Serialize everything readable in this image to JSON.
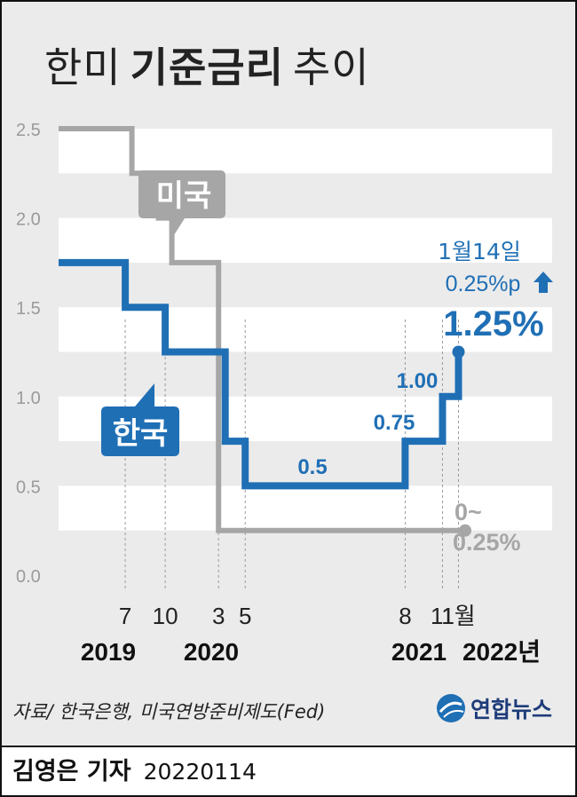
{
  "title": {
    "light_prefix": "한미",
    "bold": "기준금리",
    "light_suffix": "추이"
  },
  "chart_data": {
    "type": "line",
    "step": true,
    "title": "한미 기준금리 추이",
    "ylim": [
      0,
      2.5
    ],
    "yticks": [
      "0.0",
      "0.5",
      "1.0",
      "1.5",
      "2.0",
      "2.5"
    ],
    "x_month_labels": [
      "7",
      "10",
      "3",
      "5",
      "8",
      "11",
      "1월"
    ],
    "x_year_labels": [
      "2019",
      "2020",
      "2021",
      "2022년"
    ],
    "series": [
      {
        "name": "미국",
        "color": "#a6a6a6",
        "points": [
          {
            "t": 2019.0,
            "v": 2.5
          },
          {
            "t": 2019.55,
            "v": 2.5
          },
          {
            "t": 2019.55,
            "v": 2.25
          },
          {
            "t": 2019.75,
            "v": 2.25
          },
          {
            "t": 2019.75,
            "v": 2.0
          },
          {
            "t": 2019.85,
            "v": 2.0
          },
          {
            "t": 2019.85,
            "v": 1.75
          },
          {
            "t": 2020.2,
            "v": 1.75
          },
          {
            "t": 2020.2,
            "v": 0.25
          },
          {
            "t": 2022.05,
            "v": 0.25
          }
        ],
        "end_label": [
          "0~",
          "0.25%"
        ]
      },
      {
        "name": "한국",
        "color": "#1f6fb5",
        "points": [
          {
            "t": 2019.0,
            "v": 1.75
          },
          {
            "t": 2019.5,
            "v": 1.75
          },
          {
            "t": 2019.5,
            "v": 1.5
          },
          {
            "t": 2019.8,
            "v": 1.5
          },
          {
            "t": 2019.8,
            "v": 1.25
          },
          {
            "t": 2020.25,
            "v": 1.25
          },
          {
            "t": 2020.25,
            "v": 0.75
          },
          {
            "t": 2020.4,
            "v": 0.75
          },
          {
            "t": 2020.4,
            "v": 0.5
          },
          {
            "t": 2021.6,
            "v": 0.5
          },
          {
            "t": 2021.6,
            "v": 0.75
          },
          {
            "t": 2021.88,
            "v": 0.75
          },
          {
            "t": 2021.88,
            "v": 1.0
          },
          {
            "t": 2022.0,
            "v": 1.0
          },
          {
            "t": 2022.0,
            "v": 1.25
          }
        ],
        "value_labels": [
          "0.5",
          "0.75",
          "1.00"
        ],
        "end_value": "1.25%",
        "annotation": [
          "1월14일",
          "0.25%p"
        ]
      }
    ]
  },
  "source": "자료/ 한국은행, 미국연방준비제도(Fed)",
  "logo_text": "연합뉴스",
  "byline": {
    "name": "김영은 기자",
    "date": "20220114"
  },
  "colors": {
    "korea": "#1f6fb5",
    "usa": "#a6a6a6",
    "panel": "#ebebeb"
  }
}
